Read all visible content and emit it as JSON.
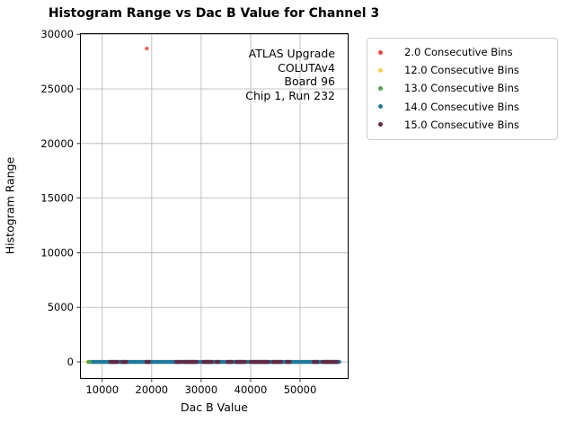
{
  "figure": {
    "title": "Histogram Range vs Dac B Value for Channel 3"
  },
  "annotation": {
    "lines": [
      "ATLAS Upgrade",
      "COLUTAv4",
      "Board 96",
      "Chip 1, Run 232"
    ]
  },
  "chart_data": {
    "type": "scatter",
    "title": "Histogram Range vs Dac B Value for Channel 3",
    "xlabel": "Dac B Value",
    "ylabel": "Histogram Range",
    "xlim": [
      5500,
      59800
    ],
    "ylim": [
      -1560,
      30100
    ],
    "xticks": [
      10000,
      20000,
      30000,
      40000,
      50000
    ],
    "yticks": [
      0,
      5000,
      10000,
      15000,
      20000,
      25000,
      30000
    ],
    "grid": true,
    "grid_color": "#b3b3b3",
    "legend_position": "upper-right-outside",
    "marker_radius_px": 2.2,
    "marker_opacity": 0.85,
    "series": [
      {
        "name": "2.0 Consecutive Bins",
        "color": "#e84a48",
        "points": [
          [
            19000,
            28700
          ]
        ]
      },
      {
        "name": "12.0 Consecutive Bins",
        "color": "#fbd14d",
        "points": [
          [
            7000,
            0
          ]
        ]
      },
      {
        "name": "13.0 Consecutive Bins",
        "color": "#57a04f",
        "points": [
          [
            7200,
            0
          ],
          [
            7400,
            0
          ],
          [
            7600,
            0
          ],
          [
            7800,
            0
          ],
          [
            8000,
            0
          ]
        ]
      },
      {
        "name": "14.0 Consecutive Bins",
        "color": "#23799a",
        "y": 0,
        "x_step": 150,
        "x_ranges": [
          [
            8150,
            58000
          ]
        ]
      },
      {
        "name": "15.0 Consecutive Bins",
        "color": "#5e2c44",
        "y": 0,
        "x_step": 150,
        "x_ranges": [
          [
            11600,
            13100
          ],
          [
            14000,
            14900
          ],
          [
            18900,
            19500
          ],
          [
            24900,
            25800
          ],
          [
            26400,
            29100
          ],
          [
            30400,
            32200
          ],
          [
            33100,
            33600
          ],
          [
            35300,
            36200
          ],
          [
            37100,
            38900
          ],
          [
            40000,
            43600
          ],
          [
            44500,
            46200
          ],
          [
            47300,
            48000
          ],
          [
            52700,
            53500
          ],
          [
            54500,
            57600
          ]
        ]
      }
    ]
  }
}
